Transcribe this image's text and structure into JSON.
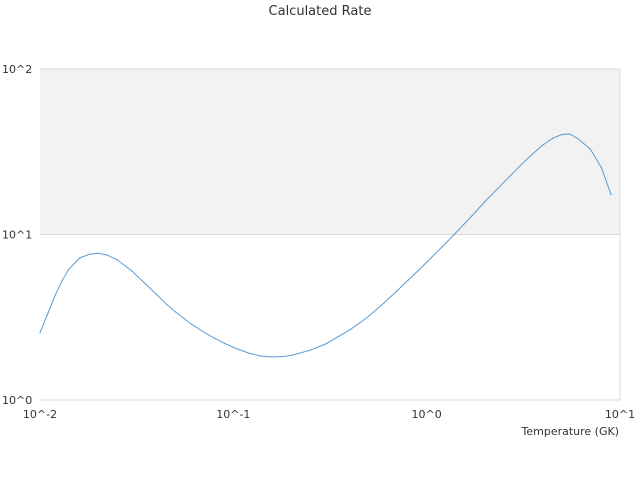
{
  "chart_data": {
    "type": "line",
    "title": "Calculated Rate",
    "xlabel": "Temperature (GK)",
    "ylabel": "",
    "xscale": "log",
    "yscale": "log",
    "xlim": [
      0.01,
      10
    ],
    "ylim": [
      1,
      100
    ],
    "x_tick_labels": [
      "10^-2",
      "10^-1",
      "10^0",
      "10^1"
    ],
    "y_tick_labels": [
      "10^0",
      "10^1",
      "10^2"
    ],
    "grid": "horizontal",
    "shaded_band": {
      "y_from": 10,
      "y_to": 100,
      "color": "#f2f2f2"
    },
    "colors": {
      "line": "#5b9bd5",
      "grid": "#d9d9d9",
      "band": "#f2f2f2"
    },
    "series": [
      {
        "x": [
          0.01,
          0.011,
          0.012,
          0.013,
          0.014,
          0.016,
          0.018,
          0.02,
          0.022,
          0.025,
          0.03,
          0.035,
          0.04,
          0.045,
          0.05,
          0.06,
          0.07,
          0.08,
          0.09,
          0.1,
          0.12,
          0.14,
          0.16,
          0.18,
          0.2,
          0.25,
          0.3,
          0.35,
          0.4,
          0.45,
          0.5,
          0.6,
          0.7,
          0.8,
          0.9,
          1.0,
          1.2,
          1.4,
          1.6,
          1.8,
          2.0,
          2.5,
          3.0,
          3.5,
          4.0,
          4.5,
          5.0,
          5.5,
          6.0,
          7.0,
          8.0,
          9.0
        ],
        "y": [
          2.55,
          3.35,
          4.3,
          5.25,
          6.1,
          7.2,
          7.6,
          7.7,
          7.55,
          7.05,
          6.0,
          5.05,
          4.35,
          3.8,
          3.42,
          2.9,
          2.58,
          2.36,
          2.2,
          2.08,
          1.92,
          1.84,
          1.82,
          1.83,
          1.86,
          2.0,
          2.18,
          2.42,
          2.65,
          2.92,
          3.2,
          3.85,
          4.55,
          5.28,
          6.02,
          6.8,
          8.4,
          10.1,
          11.9,
          13.8,
          15.8,
          20.6,
          25.6,
          30.4,
          34.8,
          38.2,
          40.2,
          40.5,
          38.2,
          33.0,
          25.5,
          17.4
        ]
      }
    ]
  }
}
